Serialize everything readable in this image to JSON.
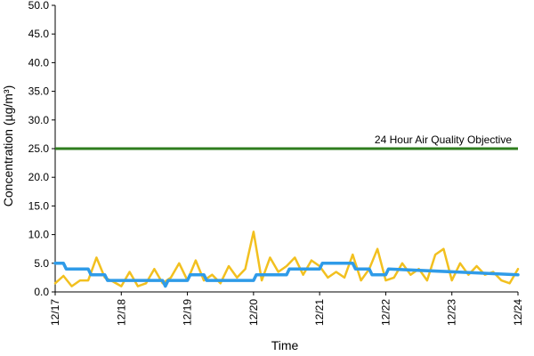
{
  "chart_data": {
    "type": "line",
    "title": "",
    "xlabel": "Time",
    "ylabel": "Concentration (µg/m³)",
    "ylim": [
      0,
      50
    ],
    "yticks": [
      "0.0",
      "5.0",
      "10.0",
      "15.0",
      "20.0",
      "25.0",
      "30.0",
      "35.0",
      "40.0",
      "45.0",
      "50.0"
    ],
    "xlim": [
      "12/17",
      "12/24"
    ],
    "xticks": [
      "12/17",
      "12/18",
      "12/19",
      "12/20",
      "12/21",
      "12/22",
      "12/23",
      "12/24"
    ],
    "grid": false,
    "legend": "none",
    "reference_line": {
      "label": "24 Hour Air Quality Objective",
      "value": 25,
      "color": "#2e7d1e"
    },
    "series": [
      {
        "color": "#f2c01f",
        "x": [
          "12/17 00:00",
          "12/17 03:00",
          "12/17 06:00",
          "12/17 09:00",
          "12/17 12:00",
          "12/17 15:00",
          "12/17 18:00",
          "12/17 21:00",
          "12/18 00:00",
          "12/18 03:00",
          "12/18 06:00",
          "12/18 09:00",
          "12/18 12:00",
          "12/18 15:00",
          "12/18 18:00",
          "12/18 21:00",
          "12/19 00:00",
          "12/19 03:00",
          "12/19 06:00",
          "12/19 09:00",
          "12/19 12:00",
          "12/19 15:00",
          "12/19 18:00",
          "12/19 21:00",
          "12/20 00:00",
          "12/20 03:00",
          "12/20 06:00",
          "12/20 09:00",
          "12/20 12:00",
          "12/20 15:00",
          "12/20 18:00",
          "12/20 21:00",
          "12/21 00:00",
          "12/21 03:00",
          "12/21 06:00",
          "12/21 09:00",
          "12/21 12:00",
          "12/21 15:00",
          "12/21 18:00",
          "12/21 21:00",
          "12/22 00:00",
          "12/22 03:00",
          "12/22 06:00",
          "12/22 09:00",
          "12/22 12:00",
          "12/22 15:00",
          "12/22 18:00",
          "12/22 21:00",
          "12/23 00:00",
          "12/23 03:00",
          "12/23 06:00",
          "12/23 09:00",
          "12/23 12:00",
          "12/23 15:00",
          "12/23 18:00",
          "12/23 21:00",
          "12/24 00:00"
        ],
        "values": [
          1.5,
          2.8,
          1.0,
          2.0,
          2.0,
          6.0,
          2.5,
          1.8,
          1.0,
          3.5,
          1.0,
          1.5,
          4.0,
          1.5,
          2.5,
          5.0,
          2.0,
          5.5,
          2.0,
          3.0,
          1.5,
          4.5,
          2.5,
          4.0,
          10.5,
          2.0,
          6.0,
          3.5,
          4.5,
          6.0,
          3.0,
          5.5,
          4.5,
          2.5,
          3.5,
          2.5,
          6.5,
          2.0,
          4.0,
          7.5,
          2.0,
          2.5,
          5.0,
          3.0,
          4.0,
          2.0,
          6.5,
          7.5,
          2.0,
          5.0,
          3.0,
          4.5,
          3.0,
          3.5,
          2.0,
          1.5,
          4.0
        ]
      },
      {
        "color": "#2f9be8",
        "x": [
          "12/17 00:00",
          "12/17 03:00",
          "12/17 04:00",
          "12/17 12:00",
          "12/17 13:00",
          "12/17 18:00",
          "12/17 19:00",
          "12/18 15:00",
          "12/18 16:00",
          "12/18 17:00",
          "12/19 00:00",
          "12/19 01:00",
          "12/19 06:00",
          "12/19 07:00",
          "12/20 00:00",
          "12/20 01:00",
          "12/20 12:00",
          "12/20 13:00",
          "12/21 00:00",
          "12/21 01:00",
          "12/21 12:00",
          "12/21 13:00",
          "12/21 18:00",
          "12/21 19:00",
          "12/22 00:00",
          "12/22 01:00",
          "12/24 00:00"
        ],
        "values": [
          5.0,
          5.0,
          4.0,
          4.0,
          3.0,
          3.0,
          2.0,
          2.0,
          1.0,
          2.0,
          2.0,
          3.0,
          3.0,
          2.0,
          2.0,
          3.0,
          3.0,
          4.0,
          4.0,
          5.0,
          5.0,
          4.0,
          4.0,
          3.0,
          3.0,
          4.0,
          3.0
        ]
      }
    ]
  }
}
